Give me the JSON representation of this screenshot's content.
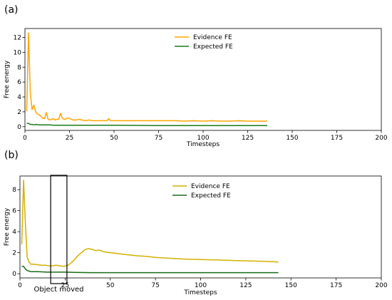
{
  "chart_data": [
    {
      "panel_label": "(a)",
      "type": "line",
      "xlabel": "Timesteps",
      "ylabel": "Free energy",
      "xlim": [
        0,
        200
      ],
      "ylim": [
        -0.5,
        13.2
      ],
      "xticks": [
        0,
        25,
        50,
        75,
        100,
        125,
        150,
        175,
        200
      ],
      "yticks": [
        0,
        2,
        4,
        6,
        8,
        10,
        12
      ],
      "legend_position": "top-center",
      "series": [
        {
          "name": "Evidence FE",
          "color": "#ffa500",
          "x": [
            1,
            2,
            3,
            4,
            5,
            6,
            7,
            8,
            9,
            10,
            11,
            12,
            13,
            14,
            15,
            16,
            17,
            18,
            19,
            20,
            21,
            22,
            23,
            24,
            25,
            26,
            27,
            28,
            29,
            30,
            32,
            34,
            36,
            38,
            40,
            42,
            44,
            46,
            47,
            48,
            50,
            55,
            60,
            65,
            70,
            75,
            80,
            85,
            90,
            95,
            100,
            105,
            110,
            115,
            120,
            125,
            130,
            136
          ],
          "y": [
            2.1,
            12.6,
            4.6,
            2.3,
            2.9,
            2.0,
            1.7,
            1.6,
            1.4,
            1.1,
            1.1,
            1.9,
            1.0,
            0.9,
            1.0,
            1.1,
            0.9,
            1.0,
            1.0,
            1.8,
            1.1,
            1.0,
            1.0,
            1.2,
            1.1,
            1.0,
            0.9,
            0.9,
            0.9,
            1.0,
            0.9,
            0.8,
            0.9,
            0.8,
            0.8,
            0.8,
            0.8,
            0.8,
            1.1,
            0.8,
            0.8,
            0.8,
            0.8,
            0.8,
            0.8,
            0.8,
            0.8,
            0.8,
            0.75,
            0.8,
            0.75,
            0.8,
            0.75,
            0.75,
            0.8,
            0.75,
            0.75,
            0.75
          ]
        },
        {
          "name": "Expected FE",
          "color": "#1a7a1a",
          "x": [
            1,
            2,
            3,
            4,
            5,
            6,
            8,
            10,
            12,
            14,
            16,
            20,
            25,
            30,
            40,
            50,
            75,
            100,
            125,
            136
          ],
          "y": [
            0.45,
            0.45,
            0.3,
            0.3,
            0.25,
            0.3,
            0.25,
            0.25,
            0.25,
            0.25,
            0.2,
            0.2,
            0.2,
            0.2,
            0.2,
            0.2,
            0.15,
            0.15,
            0.15,
            0.15
          ]
        }
      ]
    },
    {
      "panel_label": "(b)",
      "type": "line",
      "xlabel": "Timesteps",
      "ylabel": "Free energy",
      "xlim": [
        0,
        200
      ],
      "ylim": [
        -0.4,
        9.3
      ],
      "xticks": [
        0,
        25,
        50,
        75,
        100,
        125,
        150,
        175,
        200
      ],
      "yticks": [
        0,
        2,
        4,
        6,
        8
      ],
      "legend_position": "top-center",
      "series": [
        {
          "name": "Evidence FE",
          "color": "#d4b000",
          "x": [
            1,
            2,
            3,
            4,
            5,
            6,
            8,
            10,
            12,
            14,
            16,
            18,
            20,
            22,
            24,
            26,
            27,
            28,
            30,
            32,
            34,
            36,
            38,
            40,
            42,
            44,
            46,
            48,
            50,
            55,
            60,
            65,
            70,
            75,
            80,
            90,
            100,
            110,
            120,
            130,
            140,
            143
          ],
          "y": [
            2.8,
            8.9,
            4.8,
            1.6,
            1.1,
            0.9,
            0.9,
            0.85,
            0.8,
            0.8,
            0.75,
            0.75,
            0.8,
            0.75,
            0.7,
            0.75,
            0.85,
            1.0,
            1.3,
            1.7,
            2.0,
            2.3,
            2.4,
            2.3,
            2.2,
            2.25,
            2.1,
            2.05,
            2.0,
            1.9,
            1.8,
            1.7,
            1.65,
            1.55,
            1.5,
            1.4,
            1.35,
            1.3,
            1.25,
            1.2,
            1.15,
            1.1
          ]
        },
        {
          "name": "Expected FE",
          "color": "#1a6b1a",
          "x": [
            1,
            2,
            3,
            4,
            5,
            6,
            8,
            10,
            15,
            20,
            25,
            30,
            40,
            50,
            75,
            100,
            125,
            143
          ],
          "y": [
            0.7,
            0.7,
            0.45,
            0.3,
            0.25,
            0.2,
            0.2,
            0.2,
            0.15,
            0.15,
            0.15,
            0.12,
            0.1,
            0.1,
            0.1,
            0.1,
            0.1,
            0.1
          ]
        }
      ],
      "annotation": {
        "text": "Object moved",
        "x_range": [
          17,
          26
        ]
      }
    }
  ]
}
